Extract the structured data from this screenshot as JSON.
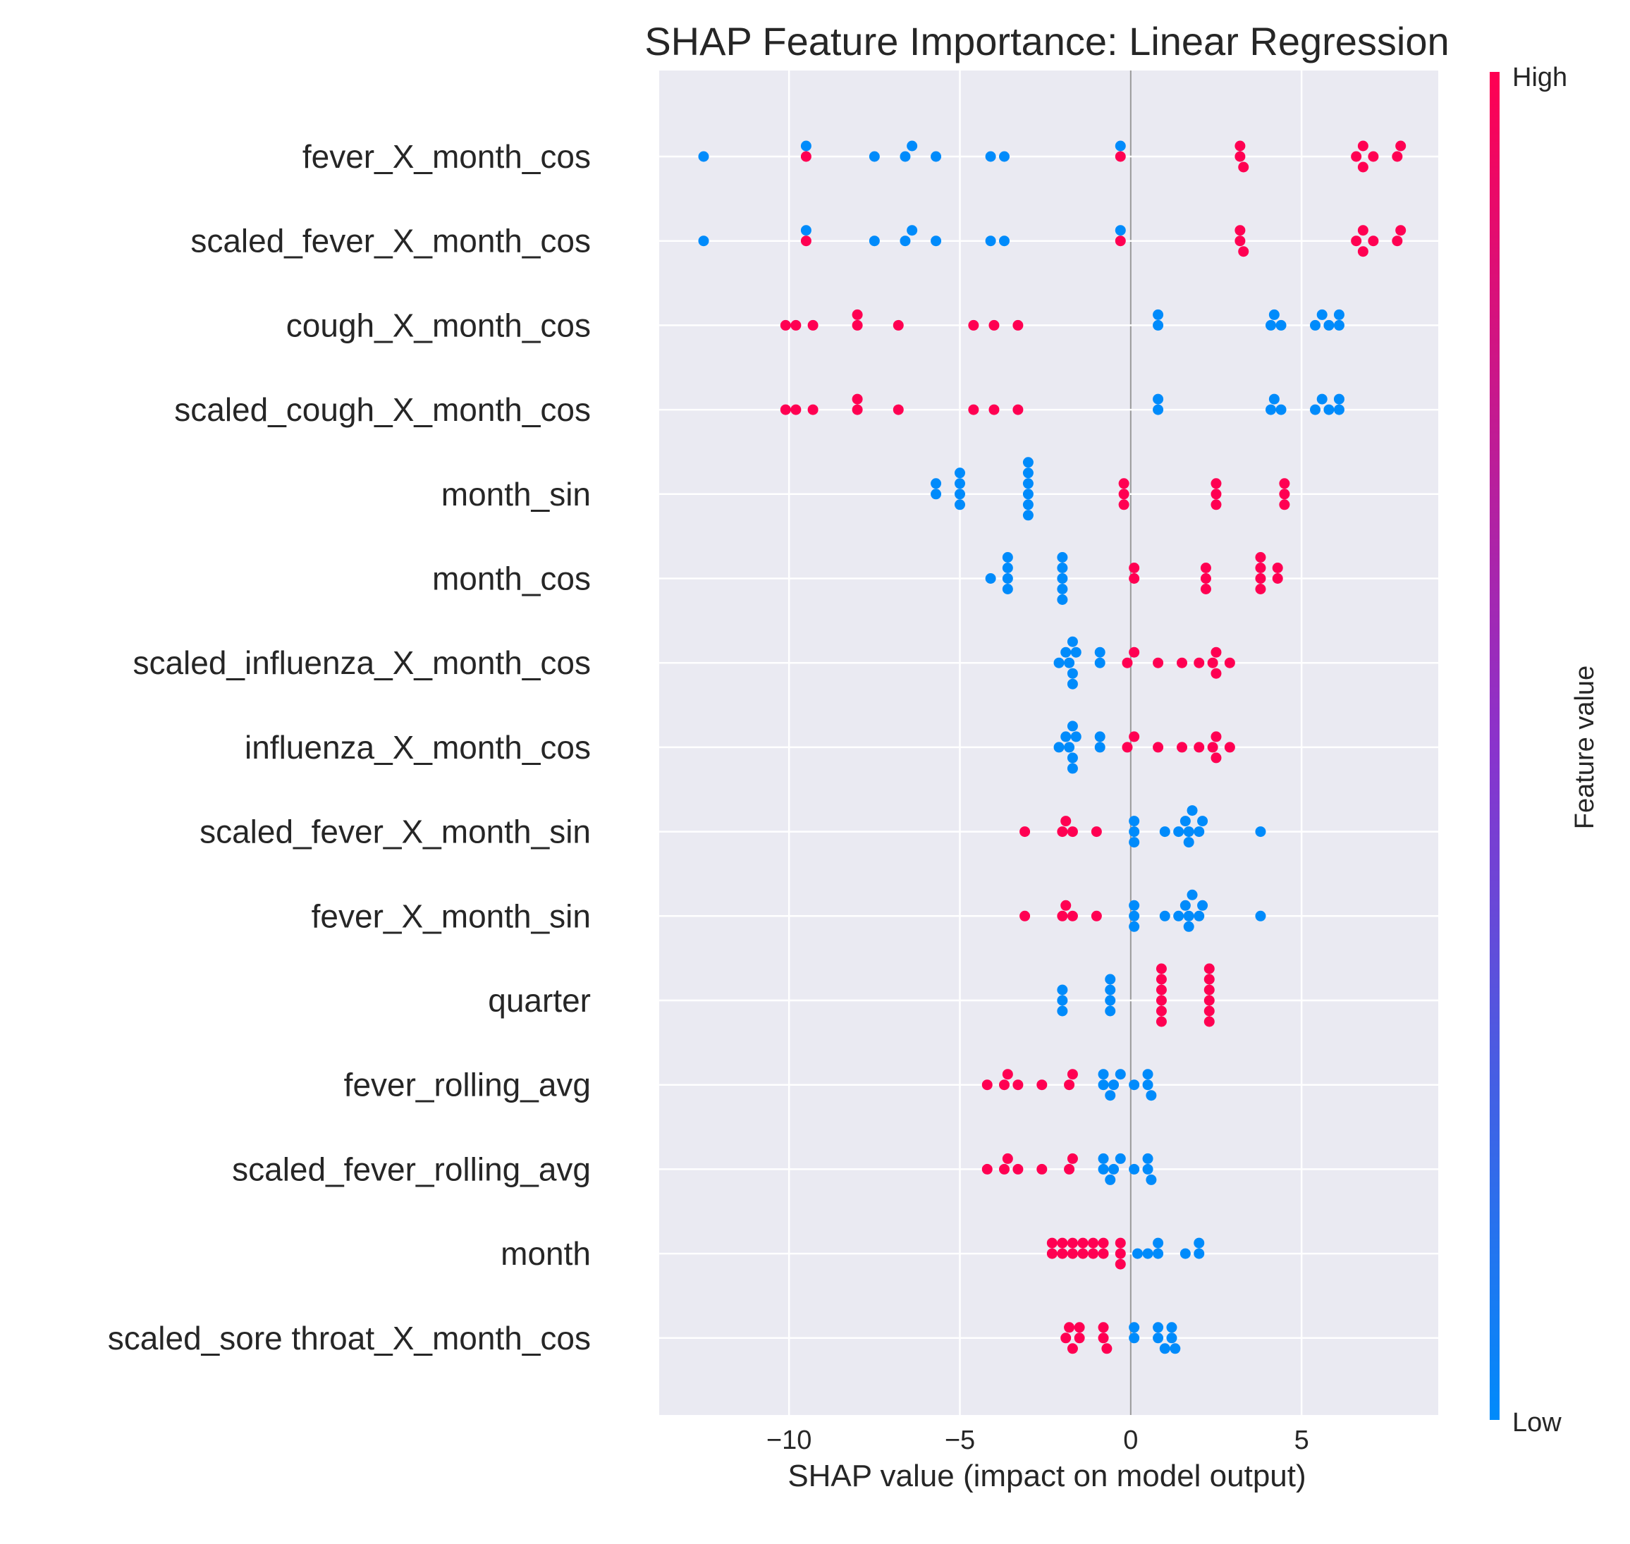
{
  "chart_data": {
    "type": "scatter",
    "title": "SHAP Feature Importance: Linear Regression",
    "xlabel": "SHAP value (impact on model output)",
    "xlim": [
      -13.8,
      9.0
    ],
    "xticks": [
      -10,
      -5,
      0,
      5
    ],
    "xtick_labels": [
      "−10",
      "−5",
      "0",
      "5"
    ],
    "grid": true,
    "colorbar": {
      "label": "Feature value",
      "high_label": "High",
      "low_label": "Low",
      "low_color": "#008bfb",
      "high_color": "#ff0052",
      "mid_color": "#8a33cc"
    },
    "colors": {
      "background": "#eaeaf2",
      "grid": "#ffffff",
      "zero_line": "#999999"
    },
    "features": [
      {
        "name": "fever_X_month_cos",
        "points": [
          [
            -12.5,
            0
          ],
          [
            -9.5,
            1
          ],
          [
            -9.5,
            0
          ],
          [
            -7.5,
            0
          ],
          [
            -6.6,
            0
          ],
          [
            -6.4,
            0
          ],
          [
            -5.7,
            0
          ],
          [
            -4.1,
            0
          ],
          [
            -3.7,
            0
          ],
          [
            -0.3,
            1
          ],
          [
            -0.3,
            0
          ],
          [
            3.2,
            1
          ],
          [
            3.2,
            1
          ],
          [
            3.3,
            1
          ],
          [
            6.6,
            1
          ],
          [
            6.8,
            1
          ],
          [
            6.8,
            1
          ],
          [
            7.1,
            1
          ],
          [
            7.8,
            1
          ],
          [
            7.9,
            1
          ]
        ]
      },
      {
        "name": "scaled_fever_X_month_cos",
        "points": [
          [
            -12.5,
            0
          ],
          [
            -9.5,
            1
          ],
          [
            -9.5,
            0
          ],
          [
            -7.5,
            0
          ],
          [
            -6.6,
            0
          ],
          [
            -6.4,
            0
          ],
          [
            -5.7,
            0
          ],
          [
            -4.1,
            0
          ],
          [
            -3.7,
            0
          ],
          [
            -0.3,
            1
          ],
          [
            -0.3,
            0
          ],
          [
            3.2,
            1
          ],
          [
            3.2,
            1
          ],
          [
            3.3,
            1
          ],
          [
            6.6,
            1
          ],
          [
            6.8,
            1
          ],
          [
            6.8,
            1
          ],
          [
            7.1,
            1
          ],
          [
            7.8,
            1
          ],
          [
            7.9,
            1
          ]
        ]
      },
      {
        "name": "cough_X_month_cos",
        "points": [
          [
            -10.1,
            1
          ],
          [
            -9.8,
            1
          ],
          [
            -9.3,
            1
          ],
          [
            -8.0,
            1
          ],
          [
            -8.0,
            1
          ],
          [
            -6.8,
            1
          ],
          [
            -4.6,
            1
          ],
          [
            -4.0,
            1
          ],
          [
            -3.3,
            1
          ],
          [
            0.8,
            0
          ],
          [
            0.8,
            0
          ],
          [
            4.1,
            0
          ],
          [
            4.2,
            0
          ],
          [
            4.4,
            0
          ],
          [
            5.4,
            0
          ],
          [
            5.6,
            0
          ],
          [
            5.8,
            0
          ],
          [
            6.1,
            0
          ],
          [
            6.1,
            0
          ]
        ]
      },
      {
        "name": "scaled_cough_X_month_cos",
        "points": [
          [
            -10.1,
            1
          ],
          [
            -9.8,
            1
          ],
          [
            -9.3,
            1
          ],
          [
            -8.0,
            1
          ],
          [
            -8.0,
            1
          ],
          [
            -6.8,
            1
          ],
          [
            -4.6,
            1
          ],
          [
            -4.0,
            1
          ],
          [
            -3.3,
            1
          ],
          [
            0.8,
            0
          ],
          [
            0.8,
            0
          ],
          [
            4.1,
            0
          ],
          [
            4.2,
            0
          ],
          [
            4.4,
            0
          ],
          [
            5.4,
            0
          ],
          [
            5.6,
            0
          ],
          [
            5.8,
            0
          ],
          [
            6.1,
            0
          ],
          [
            6.1,
            0
          ]
        ]
      },
      {
        "name": "month_sin",
        "points": [
          [
            -5.7,
            0
          ],
          [
            -5.7,
            0
          ],
          [
            -5.0,
            0
          ],
          [
            -5.0,
            0
          ],
          [
            -5.0,
            0
          ],
          [
            -5.0,
            0
          ],
          [
            -3.0,
            0
          ],
          [
            -3.0,
            0
          ],
          [
            -3.0,
            0
          ],
          [
            -3.0,
            0
          ],
          [
            -3.0,
            0
          ],
          [
            -3.0,
            0
          ],
          [
            -0.2,
            1
          ],
          [
            -0.2,
            1
          ],
          [
            -0.2,
            1
          ],
          [
            2.5,
            1
          ],
          [
            2.5,
            1
          ],
          [
            2.5,
            1
          ],
          [
            4.5,
            1
          ],
          [
            4.5,
            1
          ],
          [
            4.5,
            1
          ]
        ]
      },
      {
        "name": "month_cos",
        "points": [
          [
            -4.1,
            0
          ],
          [
            -3.6,
            0
          ],
          [
            -3.6,
            0
          ],
          [
            -3.6,
            0
          ],
          [
            -3.6,
            0
          ],
          [
            -2.0,
            0
          ],
          [
            -2.0,
            0
          ],
          [
            -2.0,
            0
          ],
          [
            -2.0,
            0
          ],
          [
            -2.0,
            0
          ],
          [
            0.1,
            1
          ],
          [
            0.1,
            1
          ],
          [
            2.2,
            1
          ],
          [
            2.2,
            1
          ],
          [
            2.2,
            1
          ],
          [
            3.8,
            1
          ],
          [
            3.8,
            1
          ],
          [
            3.8,
            1
          ],
          [
            3.8,
            1
          ],
          [
            4.3,
            1
          ],
          [
            4.3,
            1
          ]
        ]
      },
      {
        "name": "scaled_influenza_X_month_cos",
        "points": [
          [
            -2.1,
            0
          ],
          [
            -1.9,
            0
          ],
          [
            -1.8,
            0
          ],
          [
            -1.7,
            0
          ],
          [
            -1.7,
            0
          ],
          [
            -1.7,
            0
          ],
          [
            -1.6,
            0
          ],
          [
            -0.9,
            0
          ],
          [
            -0.9,
            0
          ],
          [
            -0.1,
            1
          ],
          [
            0.1,
            1
          ],
          [
            0.8,
            1
          ],
          [
            1.5,
            1
          ],
          [
            2.0,
            1
          ],
          [
            2.4,
            1
          ],
          [
            2.5,
            1
          ],
          [
            2.5,
            1
          ],
          [
            2.9,
            1
          ]
        ]
      },
      {
        "name": "influenza_X_month_cos",
        "points": [
          [
            -2.1,
            0
          ],
          [
            -1.9,
            0
          ],
          [
            -1.8,
            0
          ],
          [
            -1.7,
            0
          ],
          [
            -1.7,
            0
          ],
          [
            -1.7,
            0
          ],
          [
            -1.6,
            0
          ],
          [
            -0.9,
            0
          ],
          [
            -0.9,
            0
          ],
          [
            -0.1,
            1
          ],
          [
            0.1,
            1
          ],
          [
            0.8,
            1
          ],
          [
            1.5,
            1
          ],
          [
            2.0,
            1
          ],
          [
            2.4,
            1
          ],
          [
            2.5,
            1
          ],
          [
            2.5,
            1
          ],
          [
            2.9,
            1
          ]
        ]
      },
      {
        "name": "scaled_fever_X_month_sin",
        "points": [
          [
            -3.1,
            1
          ],
          [
            -2.0,
            1
          ],
          [
            -1.9,
            1
          ],
          [
            -1.7,
            1
          ],
          [
            -1.0,
            1
          ],
          [
            0.1,
            0
          ],
          [
            0.1,
            0
          ],
          [
            0.1,
            0
          ],
          [
            1.0,
            0
          ],
          [
            1.4,
            0
          ],
          [
            1.6,
            0
          ],
          [
            1.7,
            0
          ],
          [
            1.7,
            0
          ],
          [
            1.8,
            0
          ],
          [
            2.0,
            0
          ],
          [
            2.1,
            0
          ],
          [
            3.8,
            0
          ]
        ]
      },
      {
        "name": "fever_X_month_sin",
        "points": [
          [
            -3.1,
            1
          ],
          [
            -2.0,
            1
          ],
          [
            -1.9,
            1
          ],
          [
            -1.7,
            1
          ],
          [
            -1.0,
            1
          ],
          [
            0.1,
            0
          ],
          [
            0.1,
            0
          ],
          [
            0.1,
            0
          ],
          [
            1.0,
            0
          ],
          [
            1.4,
            0
          ],
          [
            1.6,
            0
          ],
          [
            1.7,
            0
          ],
          [
            1.7,
            0
          ],
          [
            1.8,
            0
          ],
          [
            2.0,
            0
          ],
          [
            2.1,
            0
          ],
          [
            3.8,
            0
          ]
        ]
      },
      {
        "name": "quarter",
        "points": [
          [
            -2.0,
            0
          ],
          [
            -2.0,
            0
          ],
          [
            -2.0,
            0
          ],
          [
            -0.6,
            0
          ],
          [
            -0.6,
            0
          ],
          [
            -0.6,
            0
          ],
          [
            -0.6,
            0
          ],
          [
            0.9,
            1
          ],
          [
            0.9,
            1
          ],
          [
            0.9,
            1
          ],
          [
            0.9,
            1
          ],
          [
            0.9,
            1
          ],
          [
            0.9,
            1
          ],
          [
            2.3,
            1
          ],
          [
            2.3,
            1
          ],
          [
            2.3,
            1
          ],
          [
            2.3,
            1
          ],
          [
            2.3,
            1
          ],
          [
            2.3,
            1
          ]
        ]
      },
      {
        "name": "fever_rolling_avg",
        "points": [
          [
            -4.2,
            1
          ],
          [
            -3.7,
            1
          ],
          [
            -3.6,
            1
          ],
          [
            -3.3,
            1
          ],
          [
            -2.6,
            1
          ],
          [
            -1.8,
            1
          ],
          [
            -1.7,
            1
          ],
          [
            -0.8,
            0
          ],
          [
            -0.8,
            0
          ],
          [
            -0.6,
            0
          ],
          [
            -0.5,
            0
          ],
          [
            -0.3,
            0
          ],
          [
            0.1,
            0
          ],
          [
            0.5,
            0
          ],
          [
            0.5,
            0
          ],
          [
            0.6,
            0
          ]
        ]
      },
      {
        "name": "scaled_fever_rolling_avg",
        "points": [
          [
            -4.2,
            1
          ],
          [
            -3.7,
            1
          ],
          [
            -3.6,
            1
          ],
          [
            -3.3,
            1
          ],
          [
            -2.6,
            1
          ],
          [
            -1.8,
            1
          ],
          [
            -1.7,
            1
          ],
          [
            -0.8,
            0
          ],
          [
            -0.8,
            0
          ],
          [
            -0.6,
            0
          ],
          [
            -0.5,
            0
          ],
          [
            -0.3,
            0
          ],
          [
            0.1,
            0
          ],
          [
            0.5,
            0
          ],
          [
            0.5,
            0
          ],
          [
            0.6,
            0
          ]
        ]
      },
      {
        "name": "month",
        "points": [
          [
            -2.3,
            1
          ],
          [
            -2.3,
            1
          ],
          [
            -2.0,
            1
          ],
          [
            -2.0,
            1
          ],
          [
            -1.7,
            1
          ],
          [
            -1.7,
            1
          ],
          [
            -1.4,
            1
          ],
          [
            -1.4,
            1
          ],
          [
            -1.1,
            1
          ],
          [
            -1.1,
            1
          ],
          [
            -0.8,
            1
          ],
          [
            -0.8,
            1
          ],
          [
            -0.3,
            1
          ],
          [
            -0.3,
            1
          ],
          [
            -0.3,
            1
          ],
          [
            0.2,
            0
          ],
          [
            0.5,
            0
          ],
          [
            0.8,
            0
          ],
          [
            0.8,
            0
          ],
          [
            1.6,
            0
          ],
          [
            2.0,
            0
          ],
          [
            2.0,
            0
          ]
        ]
      },
      {
        "name": "scaled_sore throat_X_month_cos",
        "points": [
          [
            -1.9,
            1
          ],
          [
            -1.8,
            1
          ],
          [
            -1.7,
            1
          ],
          [
            -1.5,
            1
          ],
          [
            -1.5,
            1
          ],
          [
            -0.8,
            1
          ],
          [
            -0.8,
            1
          ],
          [
            -0.7,
            1
          ],
          [
            0.1,
            0
          ],
          [
            0.1,
            0
          ],
          [
            0.8,
            0
          ],
          [
            0.8,
            0
          ],
          [
            1.0,
            0
          ],
          [
            1.2,
            0
          ],
          [
            1.2,
            0
          ],
          [
            1.3,
            0
          ]
        ]
      }
    ]
  }
}
